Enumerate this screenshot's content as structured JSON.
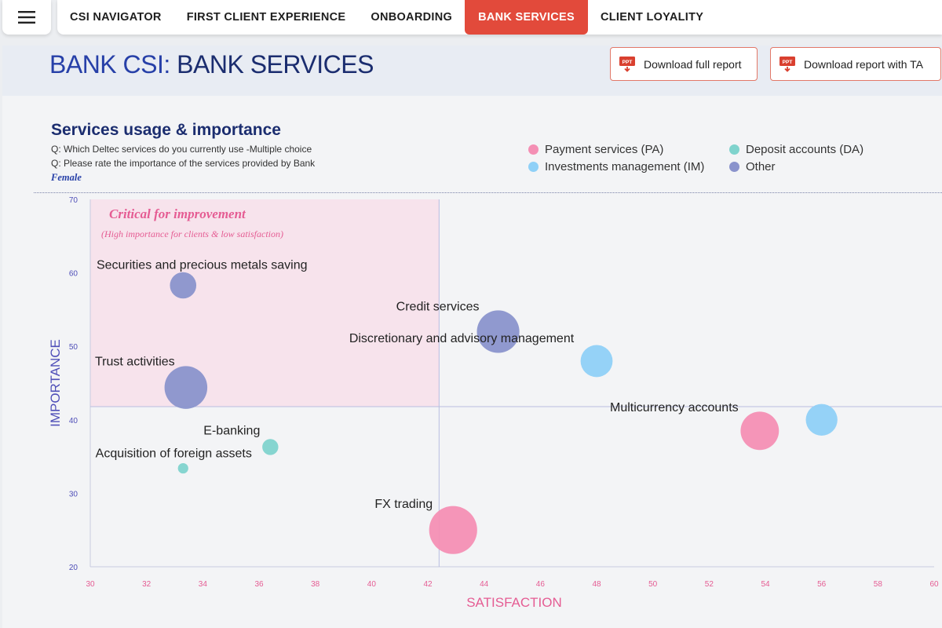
{
  "menu": {
    "icon": "hamburger-menu-icon"
  },
  "nav": {
    "tabs": [
      {
        "label": "CSI NAVIGATOR",
        "active": false
      },
      {
        "label": "FIRST CLIENT EXPERIENCE",
        "active": false
      },
      {
        "label": "ONBOARDING",
        "active": false
      },
      {
        "label": "BANK SERVICES",
        "active": true
      },
      {
        "label": "CLIENT LOYALITY",
        "active": false
      }
    ]
  },
  "header": {
    "title_prefix": "BANK CSI:",
    "title_main": " BANK SERVICES",
    "download_full_label": "Download full report",
    "download_ta_label": "Download report with TA",
    "ppt_icon_text": "PPT"
  },
  "section": {
    "title": "Services usage & importance",
    "question1": "Q: Which Deltec services do you currently use -Multiple choice",
    "question2": "Q: Please rate the importance of the services provided by Bank",
    "filter": "Female"
  },
  "colors": {
    "payment": "#f48fb4",
    "deposit": "#7fd3cd",
    "investments": "#8fd0f7",
    "other": "#8a93cc",
    "accent": "#e24a3b",
    "axis_x_label": "#e55c93",
    "axis_y_label": "#4f4fb8"
  },
  "chart_data": {
    "type": "scatter",
    "subtype": "bubble",
    "xlabel": "SATISFACTION",
    "ylabel": "IMPORTANCE",
    "xlim": [
      30,
      60
    ],
    "ylim": [
      20,
      70
    ],
    "x_ticks": [
      30,
      32,
      34,
      36,
      38,
      40,
      42,
      44,
      46,
      48,
      50,
      52,
      54,
      56,
      58,
      60
    ],
    "y_ticks": [
      20,
      30,
      40,
      50,
      60,
      70
    ],
    "reference_lines": {
      "x": 42.4,
      "y": 41.8
    },
    "highlight_region": {
      "x": [
        30,
        42.4
      ],
      "y": [
        41.8,
        70
      ],
      "label": "Critical for improvement",
      "sublabel": "(High importance for clients & low satisfaction)"
    },
    "legend": {
      "position": "top-right",
      "entries": [
        {
          "key": "payment",
          "label": "Payment services (PA)"
        },
        {
          "key": "deposit",
          "label": "Deposit accounts (DA)"
        },
        {
          "key": "investments",
          "label": "Investments management (IM)"
        },
        {
          "key": "other",
          "label": "Other"
        }
      ]
    },
    "points": [
      {
        "label": "Securities and precious metals saving",
        "x": 33.3,
        "y": 58.3,
        "size": 2.2,
        "series": "other"
      },
      {
        "label": "Credit services",
        "x": 44.5,
        "y": 52.0,
        "size": 6.7,
        "series": "other"
      },
      {
        "label": "Discretionary and advisory management",
        "x": 48.0,
        "y": 48.0,
        "size": 3.5,
        "series": "investments"
      },
      {
        "label": "Trust activities",
        "x": 33.4,
        "y": 44.4,
        "size": 6.8,
        "series": "other"
      },
      {
        "label": "Multicurrency accounts",
        "x": 53.8,
        "y": 38.5,
        "size": 5.3,
        "series": "payment"
      },
      {
        "label": "",
        "x": 56.0,
        "y": 40.0,
        "size": 3.4,
        "series": "investments"
      },
      {
        "label": "E-banking",
        "x": 36.4,
        "y": 36.3,
        "size": 0.6,
        "series": "deposit"
      },
      {
        "label": "Acquisition of foreign assets",
        "x": 33.3,
        "y": 33.4,
        "size": 0.15,
        "series": "deposit"
      },
      {
        "label": "FX trading",
        "x": 42.9,
        "y": 25.0,
        "size": 8.8,
        "series": "payment"
      }
    ]
  }
}
